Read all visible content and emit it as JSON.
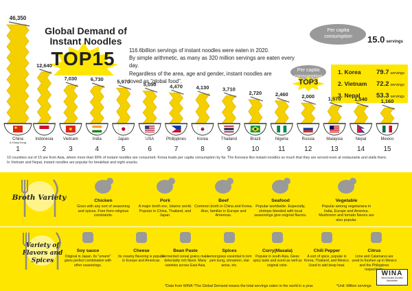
{
  "title": {
    "line1": "Global Demand of",
    "line2": "Instant Noodles",
    "big": "TOP15"
  },
  "intro": [
    "116.6billion servings of instant noodles were eaten in 2020.",
    "By simple arithmetic, as many as 320 million servings are eaten every day.",
    "Regardless of the area, age and gender, instant noodles are",
    "loved as \"global food\"."
  ],
  "per_capita": {
    "label": "Per capita consumption",
    "value": "15.0",
    "unit": "servings"
  },
  "per_capita_top3": {
    "label": "Per capita consumption",
    "badge": "TOP3",
    "items": [
      {
        "rank": "1.",
        "country": "Korea",
        "value": "79.7",
        "unit": "servings"
      },
      {
        "rank": "2.",
        "country": "Vietnam",
        "value": "72.2",
        "unit": "servings"
      },
      {
        "rank": "3.",
        "country": "Nepal",
        "value": "53.3",
        "unit": "servings"
      }
    ]
  },
  "chart_data": {
    "type": "bar",
    "categories": [
      "China & Hong Kong",
      "Indonesia",
      "Vietnam",
      "India",
      "Japan",
      "USA",
      "Philippines",
      "Korea",
      "Thailand",
      "Brazil",
      "Nigeria",
      "Russia",
      "Malaysia",
      "Nepal",
      "Mexico"
    ],
    "country_labels": [
      "China",
      "Indonesia",
      "Vietnam",
      "India",
      "Japan",
      "USA",
      "Philippines",
      "Korea",
      "Thailand",
      "Brazil",
      "Nigeria",
      "Russia",
      "Malaysia",
      "Nepal",
      "Mexico"
    ],
    "sub_label": "& Hong Kong",
    "values": [
      46350,
      12640,
      7030,
      6730,
      5970,
      5050,
      4470,
      4130,
      3710,
      2720,
      2460,
      2000,
      1570,
      1540,
      1160
    ],
    "value_labels": [
      "46,350",
      "12,640",
      "7,030",
      "6,730",
      "5,970",
      "5,050",
      "4,470",
      "4,130",
      "3,710",
      "2,720",
      "2,460",
      "2,000",
      "1,570",
      "1,540",
      "1,160"
    ],
    "ranks": [
      "1",
      "2",
      "3",
      "4",
      "5",
      "6",
      "7",
      "8",
      "9",
      "10",
      "11",
      "12",
      "13",
      "14",
      "15"
    ],
    "ylim": [
      0,
      46350
    ],
    "unit": "Million servings"
  },
  "colors": {
    "background": "#ffe600",
    "noodle": "#f5d000",
    "noodle_stroke": "#e0b800",
    "bowl_rim": "#333333",
    "panel": "#ffffff"
  },
  "flags": [
    "china",
    "indonesia",
    "vietnam",
    "india",
    "japan",
    "usa",
    "philippines",
    "korea",
    "thailand",
    "brazil",
    "nigeria",
    "russia",
    "malaysia",
    "nepal",
    "mexico"
  ],
  "footnote": [
    "10 countries out of 15 are from Asia, where more than 80% of instant noodles are consumed. Korea leads per capita consumption by far. The Koreans like instant noodles so much that they are served even at restaurants and stalls there.",
    "In Vietnam and Nepal, instant noodles are popular for breakfast and night snacks."
  ],
  "broth": {
    "label": "Broth Variety",
    "items": [
      {
        "name": "Chicken",
        "icon": "chicken-icon",
        "desc": "Goes with any sort of seasoning and spices. Free from religious constraints."
      },
      {
        "name": "Pork",
        "icon": "pig-icon",
        "desc": "A major broth exc. Islamic world. Popular in China, Thailand, and Japan."
      },
      {
        "name": "Beef",
        "icon": "cow-icon",
        "desc": "Common broth in China and Korea. Also, familiar in Europe and Americas."
      },
      {
        "name": "Seafood",
        "icon": "fish-icon",
        "desc": "Popular worldwide. Especially, shrimps blended with local seasonings give original flavors."
      },
      {
        "name": "Vegetable",
        "icon": "vegetable-icon",
        "desc": "Popular among vegetarians in India, Europe and America. Mushroom and tomato flavors are also popular."
      }
    ]
  },
  "spices": {
    "label": "Variety of Flavors and Spices",
    "items": [
      {
        "name": "Soy sauce",
        "icon": "soy-sauce-icon",
        "desc": "Original in Japan. Its \"umami\" gives perfect combination with other seasonings."
      },
      {
        "name": "Cheese",
        "icon": "cheese-icon",
        "desc": "Its creamy flavoring is popular in Europe and Americas."
      },
      {
        "name": "Bean Paste",
        "icon": "bean-paste-icon",
        "desc": "Fermented cereal grains make delectably rich flavor. Many varieties across East Asia."
      },
      {
        "name": "Spices",
        "icon": "spices-icon",
        "desc": "Lemongrass essential to tom yam kung, cinnamon, star anise, etc."
      },
      {
        "name": "Curry(Masala)",
        "icon": "curry-icon",
        "desc": "Popular in south Asia. Gives spicy taste and scent as well as original color."
      },
      {
        "name": "Chili Pepper",
        "icon": "chili-icon",
        "desc": "A sort of spice, popular in Korea, Thailand, and Mexico. Used to add deep heat."
      },
      {
        "name": "Citrus",
        "icon": "citrus-icon",
        "desc": "Lime and Calamansi are used to freshen up in Mexico and the Philippines respectively."
      }
    ]
  },
  "footer": {
    "note1": "*Data from WINA",
    "note2": "*The Global Demand means the total servings eaten in the world in a year.",
    "note3": "*Unit: Million servings"
  },
  "logo": {
    "name": "WINA",
    "sub": "World Instant Noodles Association"
  }
}
